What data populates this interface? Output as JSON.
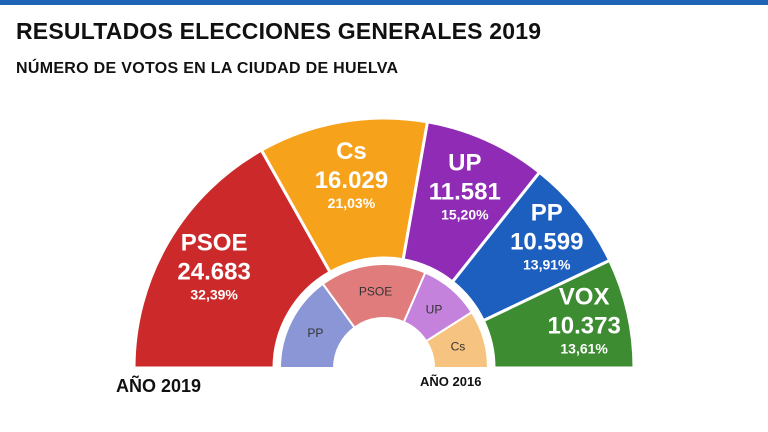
{
  "header": {
    "title": "RESULTADOS ELECCIONES GENERALES 2019",
    "subtitle": "NÚMERO DE VOTOS EN LA CIUDAD DE HUELVA"
  },
  "labels": {
    "year_2019": "AÑO 2019",
    "year_2016": "AÑO 2016"
  },
  "chart_data": [
    {
      "type": "pie",
      "title": "AÑO 2019",
      "style": "semicircle-donut",
      "slices": [
        {
          "party": "PSOE",
          "votes": 24683,
          "votes_label": "24.683",
          "pct_label": "32,39%",
          "color": "#cc2a2a"
        },
        {
          "party": "Cs",
          "votes": 16029,
          "votes_label": "16.029",
          "pct_label": "21,03%",
          "color": "#f7a21b"
        },
        {
          "party": "UP",
          "votes": 11581,
          "votes_label": "11.581",
          "pct_label": "15,20%",
          "color": "#8f2bb5"
        },
        {
          "party": "PP",
          "votes": 10599,
          "votes_label": "10.599",
          "pct_label": "13,91%",
          "color": "#1d5fbf"
        },
        {
          "party": "VOX",
          "votes": 10373,
          "votes_label": "10.373",
          "pct_label": "13,61%",
          "color": "#3d8c32"
        }
      ]
    },
    {
      "type": "pie",
      "title": "AÑO 2016",
      "style": "semicircle-donut",
      "slices": [
        {
          "party": "PP",
          "share": 0.3,
          "color": "#8a96d6"
        },
        {
          "party": "PSOE",
          "share": 0.33,
          "color": "#e07c7c"
        },
        {
          "party": "UP",
          "share": 0.19,
          "color": "#c582dc"
        },
        {
          "party": "Cs",
          "share": 0.18,
          "color": "#f6c480"
        }
      ]
    }
  ]
}
